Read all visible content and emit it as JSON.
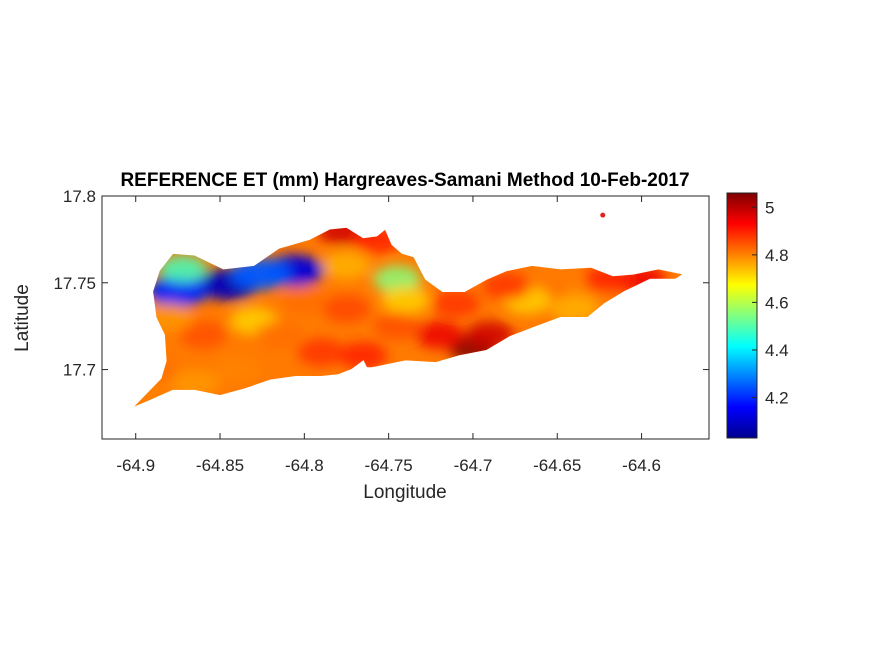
{
  "chart_data": {
    "type": "heatmap",
    "title": "REFERENCE ET (mm) Hargreaves-Samani Method  10-Feb-2017",
    "xlabel": "Longitude",
    "ylabel": "Latitude",
    "xlim": [
      -64.92,
      -64.56
    ],
    "ylim": [
      17.66,
      17.8
    ],
    "xticks": [
      -64.9,
      -64.85,
      -64.8,
      -64.75,
      -64.7,
      -64.65,
      -64.6
    ],
    "xtick_labels": [
      "-64.9",
      "-64.85",
      "-64.8",
      "-64.75",
      "-64.7",
      "-64.65",
      "-64.6"
    ],
    "yticks": [
      17.7,
      17.75,
      17.8
    ],
    "ytick_labels": [
      "17.7",
      "17.75",
      "17.8"
    ],
    "colorbar": {
      "colormap": "jet",
      "clim": [
        4.03,
        5.06
      ],
      "ticks": [
        4.2,
        4.4,
        4.6,
        4.8,
        5
      ],
      "tick_labels": [
        "4.2",
        "4.4",
        "4.6",
        "4.8",
        "5"
      ]
    },
    "grid": false,
    "island_outline": [
      [
        -64.9,
        17.68
      ],
      [
        -64.89,
        17.69
      ],
      [
        -64.885,
        17.695
      ],
      [
        -64.882,
        17.705
      ],
      [
        -64.883,
        17.72
      ],
      [
        -64.888,
        17.73
      ],
      [
        -64.89,
        17.745
      ],
      [
        -64.886,
        17.757
      ],
      [
        -64.878,
        17.767
      ],
      [
        -64.865,
        17.766
      ],
      [
        -64.848,
        17.758
      ],
      [
        -64.83,
        17.76
      ],
      [
        -64.815,
        17.77
      ],
      [
        -64.797,
        17.775
      ],
      [
        -64.785,
        17.781
      ],
      [
        -64.775,
        17.782
      ],
      [
        -64.765,
        17.776
      ],
      [
        -64.757,
        17.777
      ],
      [
        -64.752,
        17.781
      ],
      [
        -64.748,
        17.772
      ],
      [
        -64.742,
        17.767
      ],
      [
        -64.735,
        17.765
      ],
      [
        -64.728,
        17.752
      ],
      [
        -64.718,
        17.745
      ],
      [
        -64.705,
        17.745
      ],
      [
        -64.692,
        17.752
      ],
      [
        -64.68,
        17.757
      ],
      [
        -64.665,
        17.76
      ],
      [
        -64.648,
        17.758
      ],
      [
        -64.63,
        17.759
      ],
      [
        -64.617,
        17.754
      ],
      [
        -64.605,
        17.755
      ],
      [
        -64.59,
        17.758
      ],
      [
        -64.575,
        17.755
      ],
      [
        -64.58,
        17.752
      ],
      [
        -64.595,
        17.752
      ],
      [
        -64.61,
        17.745
      ],
      [
        -64.622,
        17.738
      ],
      [
        -64.632,
        17.73
      ],
      [
        -64.648,
        17.73
      ],
      [
        -64.662,
        17.725
      ],
      [
        -64.678,
        17.719
      ],
      [
        -64.692,
        17.711
      ],
      [
        -64.708,
        17.708
      ],
      [
        -64.722,
        17.704
      ],
      [
        -64.74,
        17.705
      ],
      [
        -64.76,
        17.701
      ],
      [
        -64.763,
        17.701
      ],
      [
        -64.765,
        17.705
      ],
      [
        -64.772,
        17.7
      ],
      [
        -64.78,
        17.697
      ],
      [
        -64.79,
        17.696
      ],
      [
        -64.805,
        17.696
      ],
      [
        -64.82,
        17.694
      ],
      [
        -64.835,
        17.689
      ],
      [
        -64.85,
        17.685
      ],
      [
        -64.865,
        17.688
      ],
      [
        -64.878,
        17.688
      ],
      [
        -64.892,
        17.682
      ],
      [
        -64.902,
        17.678
      ]
    ],
    "islet": [
      -64.623,
      17.789
    ],
    "field_anchors": [
      {
        "lon": -64.845,
        "lat": 17.749,
        "value": 4.08
      },
      {
        "lon": -64.806,
        "lat": 17.757,
        "value": 4.12
      },
      {
        "lon": -64.875,
        "lat": 17.745,
        "value": 4.2
      },
      {
        "lon": -64.826,
        "lat": 17.755,
        "value": 4.25
      },
      {
        "lon": -64.872,
        "lat": 17.758,
        "value": 4.48
      },
      {
        "lon": -64.745,
        "lat": 17.752,
        "value": 4.55
      },
      {
        "lon": -64.74,
        "lat": 17.74,
        "value": 4.72
      },
      {
        "lon": -64.775,
        "lat": 17.76,
        "value": 4.75
      },
      {
        "lon": -64.7,
        "lat": 17.712,
        "value": 5.06
      },
      {
        "lon": -64.69,
        "lat": 17.72,
        "value": 4.98
      },
      {
        "lon": -64.72,
        "lat": 17.72,
        "value": 4.95
      },
      {
        "lon": -64.655,
        "lat": 17.74,
        "value": 4.82
      },
      {
        "lon": -64.668,
        "lat": 17.74,
        "value": 4.72
      },
      {
        "lon": -64.63,
        "lat": 17.745,
        "value": 4.8
      },
      {
        "lon": -64.6,
        "lat": 17.752,
        "value": 4.95
      },
      {
        "lon": -64.778,
        "lat": 17.78,
        "value": 4.98
      },
      {
        "lon": -64.757,
        "lat": 17.775,
        "value": 4.9
      },
      {
        "lon": -64.86,
        "lat": 17.72,
        "value": 4.85
      },
      {
        "lon": -64.83,
        "lat": 17.728,
        "value": 4.72
      },
      {
        "lon": -64.88,
        "lat": 17.73,
        "value": 4.78
      },
      {
        "lon": -64.895,
        "lat": 17.69,
        "value": 4.8
      },
      {
        "lon": -64.79,
        "lat": 17.71,
        "value": 4.88
      },
      {
        "lon": -64.765,
        "lat": 17.708,
        "value": 4.9
      },
      {
        "lon": -64.8,
        "lat": 17.74,
        "value": 4.82
      },
      {
        "lon": -64.775,
        "lat": 17.735,
        "value": 4.86
      },
      {
        "lon": -64.745,
        "lat": 17.725,
        "value": 4.85
      },
      {
        "lon": -64.84,
        "lat": 17.7,
        "value": 4.8
      },
      {
        "lon": -64.865,
        "lat": 17.692,
        "value": 4.78
      },
      {
        "lon": -64.68,
        "lat": 17.748,
        "value": 4.88
      },
      {
        "lon": -64.71,
        "lat": 17.738,
        "value": 4.88
      },
      {
        "lon": -64.62,
        "lat": 17.752,
        "value": 4.9
      },
      {
        "lon": -64.64,
        "lat": 17.735,
        "value": 4.75
      },
      {
        "lon": -64.89,
        "lat": 17.7,
        "value": 4.82
      },
      {
        "lon": -64.815,
        "lat": 17.72,
        "value": 4.82
      }
    ]
  }
}
